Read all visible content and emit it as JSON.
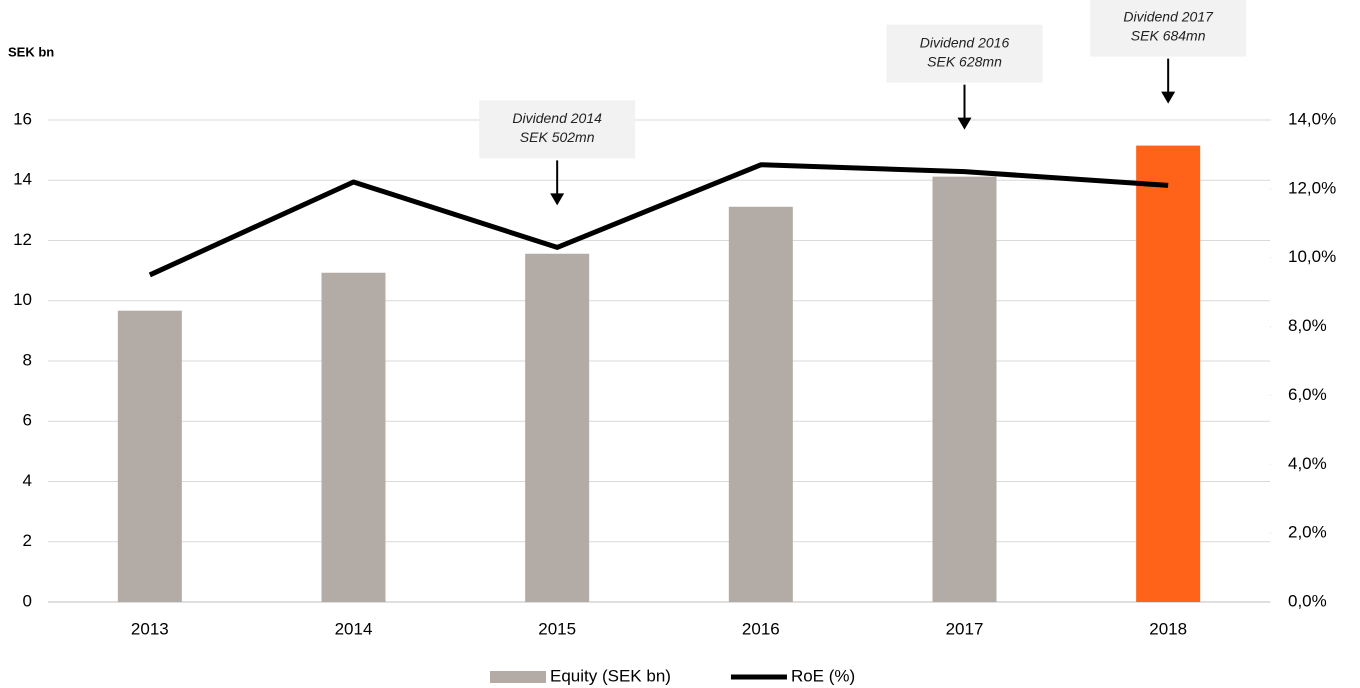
{
  "chart_data": {
    "type": "bar_line",
    "y_axis_title": "SEK bn",
    "categories": [
      "2013",
      "2014",
      "2015",
      "2016",
      "2017",
      "2018"
    ],
    "series": [
      {
        "name": "Equity (SEK bn)",
        "type": "bar",
        "color": "#b3aca6",
        "colors": [
          "#b3aca6",
          "#b3aca6",
          "#b3aca6",
          "#b3aca6",
          "#b3aca6",
          "#ff6319"
        ],
        "values": [
          9.67,
          10.93,
          11.56,
          13.12,
          14.12,
          15.15
        ]
      },
      {
        "name": "RoE (%)",
        "type": "line",
        "color": "#000000",
        "axis": "y2",
        "values": [
          9.5,
          12.2,
          10.3,
          12.7,
          12.5,
          12.1
        ]
      }
    ],
    "ylim": [
      0,
      16
    ],
    "yticks": [
      0,
      2,
      4,
      6,
      8,
      10,
      12,
      14,
      16
    ],
    "y2lim": [
      0,
      14
    ],
    "y2ticks": [
      {
        "value": 0,
        "label": "0,0%"
      },
      {
        "value": 2,
        "label": "2,0%"
      },
      {
        "value": 4,
        "label": "4,0%"
      },
      {
        "value": 6,
        "label": "6,0%"
      },
      {
        "value": 8,
        "label": "8,0%"
      },
      {
        "value": 10,
        "label": "10,0%"
      },
      {
        "value": 12,
        "label": "12,0%"
      },
      {
        "value": 14,
        "label": "14,0%"
      }
    ],
    "grid": true,
    "legend": "bottom",
    "annotations": [
      {
        "category": "2015",
        "lines": [
          "Dividend 2014",
          "SEK 502mn"
        ]
      },
      {
        "category": "2017",
        "lines": [
          "Dividend 2016",
          "SEK 628mn"
        ]
      },
      {
        "category": "2018",
        "lines": [
          "Dividend 2017",
          "SEK 684mn"
        ]
      }
    ]
  }
}
